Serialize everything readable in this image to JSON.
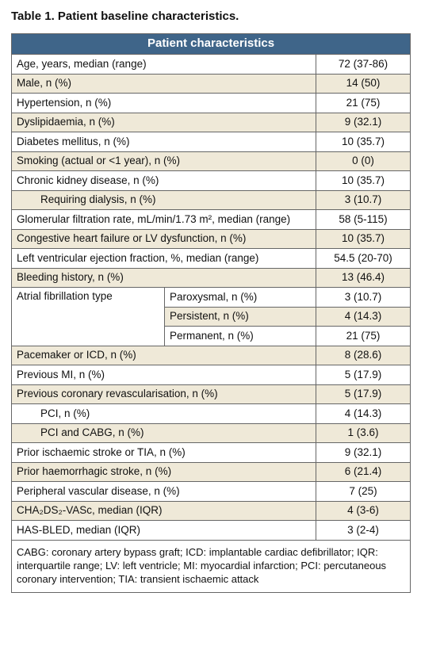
{
  "title": "Table 1. Patient baseline characteristics.",
  "table": {
    "header": "Patient characteristics",
    "rows": [
      {
        "label": "Age, years, median (range)",
        "value": "72 (37-86)"
      },
      {
        "label": "Male, n (%)",
        "value": "14 (50)"
      },
      {
        "label": "Hypertension, n (%)",
        "value": "21 (75)"
      },
      {
        "label": "Dyslipidaemia, n (%)",
        "value": "9 (32.1)"
      },
      {
        "label": "Diabetes mellitus, n (%)",
        "value": "10 (35.7)"
      },
      {
        "label": "Smoking (actual or <1 year), n (%)",
        "value": "0 (0)"
      },
      {
        "label": "Chronic kidney disease, n (%)",
        "value": "10 (35.7)",
        "subrows": [
          {
            "label": "Requiring dialysis, n (%)",
            "value": "3 (10.7)"
          }
        ]
      },
      {
        "label": "Glomerular filtration rate, mL/min/1.73 m², median (range)",
        "value": "58 (5-115)"
      },
      {
        "label": "Congestive heart failure or LV dysfunction, n (%)",
        "value": "10 (35.7)"
      },
      {
        "label": "Left ventricular ejection fraction, %, median (range)",
        "value": "54.5 (20-70)"
      },
      {
        "label": "Bleeding history, n (%)",
        "value": "13 (46.4)"
      },
      {
        "label": "Atrial fibrillation type",
        "types": [
          {
            "label": "Paroxysmal, n (%)",
            "value": "3 (10.7)"
          },
          {
            "label": "Persistent, n (%)",
            "value": "4 (14.3)"
          },
          {
            "label": "Permanent, n (%)",
            "value": "21 (75)"
          }
        ]
      },
      {
        "label": "Pacemaker or ICD, n (%)",
        "value": "8 (28.6)"
      },
      {
        "label": "Previous MI, n (%)",
        "value": "5 (17.9)"
      },
      {
        "label": "Previous coronary revascularisation, n (%)",
        "value": "5 (17.9)",
        "subrows": [
          {
            "label": "PCI, n (%)",
            "value": "4 (14.3)"
          },
          {
            "label": "PCI and CABG, n (%)",
            "value": "1 (3.6)"
          }
        ]
      },
      {
        "label": "Prior ischaemic stroke or TIA, n (%)",
        "value": "9 (32.1)"
      },
      {
        "label": "Prior haemorrhagic stroke, n (%)",
        "value": "6 (21.4)"
      },
      {
        "label": "Peripheral vascular disease, n (%)",
        "value": "7 (25)"
      },
      {
        "label": "CHA₂DS₂-VASc, median (IQR)",
        "value": "4 (3-6)"
      },
      {
        "label": "HAS-BLED, median (IQR)",
        "value": "3 (2-4)"
      }
    ],
    "footnote": "CABG: coronary artery bypass graft; ICD: implantable cardiac defibrillator; IQR: interquartile range; LV: left ventricle; MI: myocardial infarction; PCI: percutaneous coronary intervention; TIA: transient ischaemic attack"
  }
}
